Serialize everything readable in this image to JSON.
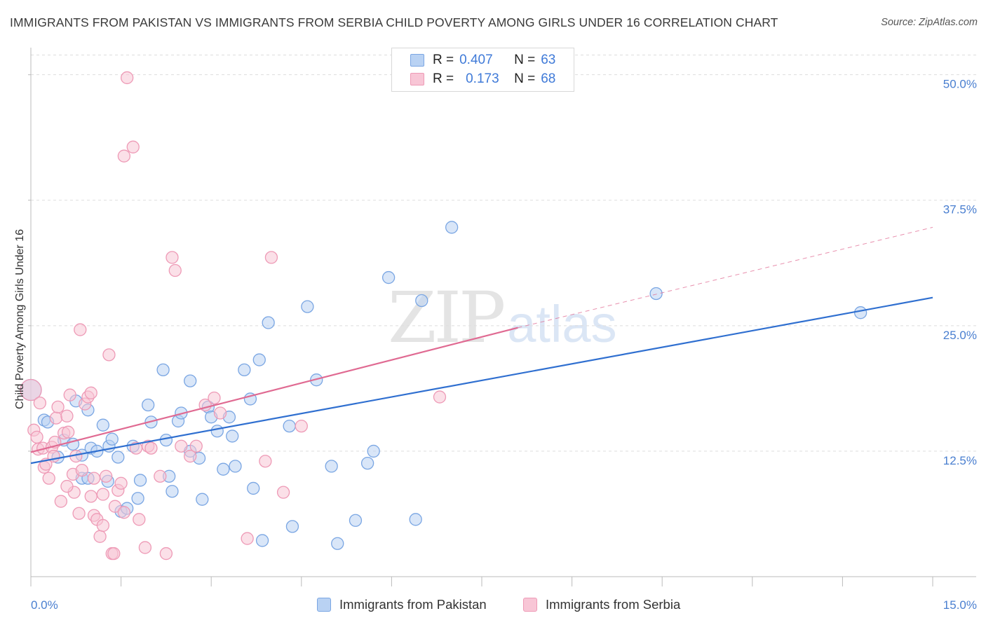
{
  "header": {
    "title": "IMMIGRANTS FROM PAKISTAN VS IMMIGRANTS FROM SERBIA CHILD POVERTY AMONG GIRLS UNDER 16 CORRELATION CHART",
    "source": "Source: ZipAtlas.com"
  },
  "watermark": {
    "zip": "ZIP",
    "atlas": "atlas"
  },
  "colors": {
    "pakistan_fill": "#b9d2f3",
    "pakistan_stroke": "#7aa6e3",
    "pakistan_line": "#2f6fd0",
    "serbia_fill": "#f8c6d6",
    "serbia_stroke": "#ee9ab6",
    "serbia_line": "#e06a92",
    "grid": "#dddddd",
    "tick_label": "#4a7fd0"
  },
  "legend": {
    "r_label": "R =",
    "n_label": "N =",
    "pakistan": {
      "r": "0.407",
      "n": "63"
    },
    "serbia": {
      "r": "0.173",
      "n": "68"
    }
  },
  "bottom_legend": {
    "pakistan": "Immigrants from Pakistan",
    "serbia": "Immigrants from Serbia"
  },
  "chart_data": {
    "type": "scatter",
    "title": "IMMIGRANTS FROM PAKISTAN VS IMMIGRANTS FROM SERBIA CHILD POVERTY AMONG GIRLS UNDER 16 CORRELATION CHART",
    "xlabel": "",
    "ylabel": "Child Poverty Among Girls Under 16",
    "xlim": [
      0,
      15
    ],
    "ylim": [
      0,
      52
    ],
    "x_tick_labels": [
      "0.0%",
      "15.0%"
    ],
    "y_ticks": [
      12.5,
      25.0,
      37.5,
      50.0
    ],
    "y_tick_labels": [
      "12.5%",
      "25.0%",
      "37.5%",
      "50.0%"
    ],
    "grid": true,
    "series": [
      {
        "name": "Immigrants from Pakistan",
        "trend": {
          "x0": 0,
          "y0": 11.3,
          "x1": 15,
          "y1": 27.8
        },
        "points": [
          [
            0.0,
            18.6
          ],
          [
            0.22,
            15.6
          ],
          [
            0.28,
            15.4
          ],
          [
            0.45,
            11.9
          ],
          [
            0.55,
            13.6
          ],
          [
            0.7,
            13.2
          ],
          [
            0.75,
            17.5
          ],
          [
            0.85,
            12.1
          ],
          [
            0.95,
            16.6
          ],
          [
            0.85,
            9.8
          ],
          [
            1.0,
            12.8
          ],
          [
            1.1,
            12.5
          ],
          [
            1.2,
            15.1
          ],
          [
            1.3,
            13.0
          ],
          [
            1.35,
            13.7
          ],
          [
            1.28,
            9.5
          ],
          [
            1.45,
            11.9
          ],
          [
            1.5,
            6.5
          ],
          [
            1.6,
            6.8
          ],
          [
            1.7,
            13.0
          ],
          [
            1.78,
            7.8
          ],
          [
            1.82,
            9.6
          ],
          [
            1.95,
            17.1
          ],
          [
            2.0,
            15.4
          ],
          [
            2.2,
            20.6
          ],
          [
            2.3,
            10.0
          ],
          [
            2.35,
            8.5
          ],
          [
            2.45,
            15.5
          ],
          [
            2.5,
            16.3
          ],
          [
            2.65,
            12.5
          ],
          [
            2.65,
            19.5
          ],
          [
            2.8,
            11.8
          ],
          [
            2.85,
            7.7
          ],
          [
            2.95,
            16.9
          ],
          [
            3.0,
            15.9
          ],
          [
            3.1,
            14.5
          ],
          [
            3.2,
            10.7
          ],
          [
            3.3,
            15.9
          ],
          [
            3.35,
            14.0
          ],
          [
            3.4,
            11.0
          ],
          [
            3.55,
            20.6
          ],
          [
            3.65,
            17.7
          ],
          [
            3.7,
            8.8
          ],
          [
            3.8,
            21.6
          ],
          [
            3.85,
            3.6
          ],
          [
            3.95,
            25.3
          ],
          [
            4.3,
            15.0
          ],
          [
            4.35,
            5.0
          ],
          [
            4.6,
            26.9
          ],
          [
            4.75,
            19.6
          ],
          [
            5.0,
            11.0
          ],
          [
            5.1,
            3.3
          ],
          [
            5.4,
            5.6
          ],
          [
            5.6,
            11.3
          ],
          [
            5.7,
            12.5
          ],
          [
            5.95,
            29.8
          ],
          [
            6.4,
            5.7
          ],
          [
            6.5,
            27.5
          ],
          [
            7.0,
            34.8
          ],
          [
            10.4,
            28.2
          ],
          [
            13.8,
            26.3
          ],
          [
            0.95,
            9.8
          ],
          [
            2.25,
            13.6
          ]
        ]
      },
      {
        "name": "Immigrants from Serbia",
        "trend": {
          "x0": 0,
          "y0": 12.4,
          "x1": 8.1,
          "y1": 24.8,
          "dash_to_x": 15,
          "dash_to_y": 34.8
        },
        "points": [
          [
            0.0,
            18.6
          ],
          [
            0.05,
            14.6
          ],
          [
            0.1,
            13.9
          ],
          [
            0.12,
            12.7
          ],
          [
            0.15,
            17.3
          ],
          [
            0.2,
            12.8
          ],
          [
            0.22,
            10.9
          ],
          [
            0.25,
            11.2
          ],
          [
            0.3,
            9.8
          ],
          [
            0.35,
            12.9
          ],
          [
            0.38,
            12.0
          ],
          [
            0.4,
            13.4
          ],
          [
            0.42,
            15.8
          ],
          [
            0.45,
            16.9
          ],
          [
            0.5,
            7.5
          ],
          [
            0.55,
            14.3
          ],
          [
            0.6,
            16.0
          ],
          [
            0.62,
            14.4
          ],
          [
            0.65,
            18.1
          ],
          [
            0.7,
            10.2
          ],
          [
            0.72,
            8.4
          ],
          [
            0.75,
            12.0
          ],
          [
            0.8,
            6.3
          ],
          [
            0.82,
            24.6
          ],
          [
            0.85,
            10.6
          ],
          [
            0.9,
            17.2
          ],
          [
            0.95,
            17.9
          ],
          [
            1.0,
            18.3
          ],
          [
            1.0,
            8.0
          ],
          [
            1.05,
            9.8
          ],
          [
            1.05,
            6.1
          ],
          [
            1.1,
            5.7
          ],
          [
            1.15,
            4.0
          ],
          [
            1.2,
            8.2
          ],
          [
            1.2,
            5.1
          ],
          [
            1.25,
            10.0
          ],
          [
            1.3,
            22.1
          ],
          [
            1.35,
            2.3
          ],
          [
            1.38,
            2.3
          ],
          [
            1.4,
            7.0
          ],
          [
            1.45,
            8.6
          ],
          [
            1.5,
            9.3
          ],
          [
            1.55,
            6.4
          ],
          [
            1.55,
            41.9
          ],
          [
            1.6,
            49.7
          ],
          [
            1.7,
            42.8
          ],
          [
            1.75,
            12.8
          ],
          [
            1.8,
            5.7
          ],
          [
            1.9,
            2.9
          ],
          [
            1.95,
            13.0
          ],
          [
            2.0,
            12.8
          ],
          [
            2.15,
            10.0
          ],
          [
            2.25,
            2.3
          ],
          [
            2.35,
            31.8
          ],
          [
            2.4,
            30.5
          ],
          [
            2.5,
            13.0
          ],
          [
            2.65,
            12.0
          ],
          [
            2.75,
            13.0
          ],
          [
            2.9,
            17.1
          ],
          [
            3.05,
            17.8
          ],
          [
            3.15,
            16.3
          ],
          [
            3.6,
            3.8
          ],
          [
            3.9,
            11.5
          ],
          [
            4.0,
            31.8
          ],
          [
            4.2,
            8.4
          ],
          [
            4.5,
            15.0
          ],
          [
            6.8,
            17.9
          ],
          [
            0.6,
            9.0
          ]
        ]
      }
    ]
  }
}
